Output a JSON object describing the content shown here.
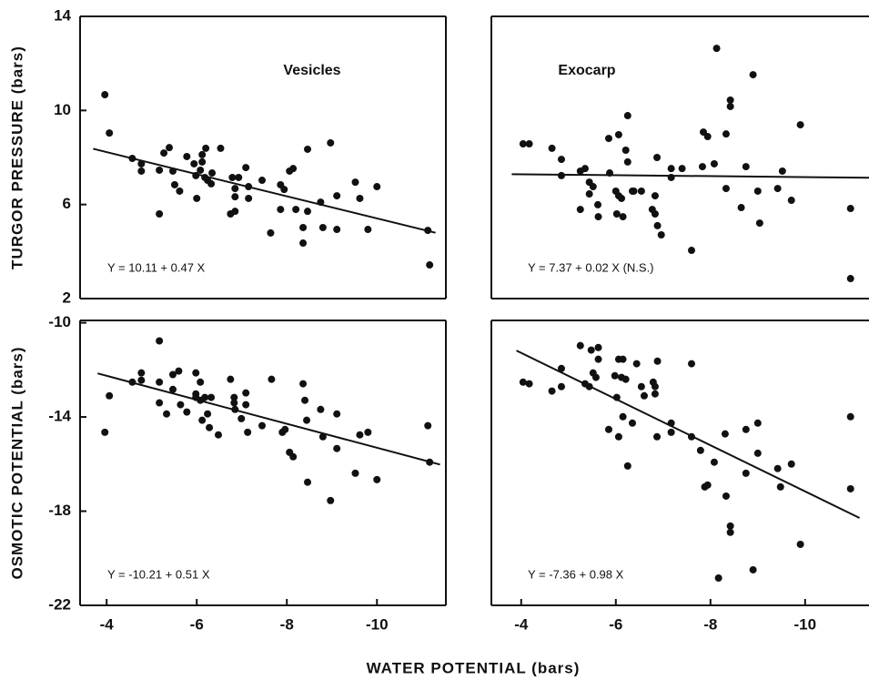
{
  "chart_data": [
    {
      "type": "scatter",
      "title": "Vesicles",
      "ylabel": "TURGOR PRESSURE (bars)",
      "annotation": "Y = 10.11 + 0.47 X",
      "xlim": [
        -3.41,
        -11.53
      ],
      "ylim": [
        2,
        14
      ],
      "yticks": [
        2,
        6,
        10,
        14
      ],
      "x": [
        -3.96,
        -4.06,
        -4.57,
        -4.77,
        -4.77,
        -5.17,
        -5.27,
        -5.39,
        -5.47,
        -5.51,
        -5.62,
        -5.78,
        -5.17,
        -5.94,
        -5.98,
        -6.0,
        -6.08,
        -6.12,
        -6.12,
        -6.18,
        -6.2,
        -6.24,
        -6.32,
        -6.34,
        -6.53,
        -6.79,
        -6.85,
        -6.85,
        -6.75,
        -6.85,
        -6.93,
        -7.09,
        -7.15,
        -7.15,
        -7.45,
        -7.64,
        -7.86,
        -7.94,
        -7.86,
        -8.06,
        -8.14,
        -8.2,
        -8.36,
        -8.36,
        -8.46,
        -8.46,
        -8.75,
        -8.8,
        -8.97,
        -9.11,
        -9.11,
        -9.52,
        -9.62,
        -9.8,
        -10.0,
        -11.13,
        -11.17
      ],
      "values": [
        10.67,
        9.04,
        7.96,
        7.73,
        7.42,
        7.46,
        8.19,
        8.42,
        7.42,
        6.84,
        6.57,
        8.04,
        5.6,
        7.73,
        7.23,
        6.26,
        7.46,
        8.12,
        7.81,
        7.15,
        8.39,
        7.03,
        6.88,
        7.34,
        8.39,
        7.15,
        6.68,
        6.33,
        5.6,
        5.71,
        7.15,
        7.57,
        6.26,
        6.76,
        7.03,
        4.79,
        6.84,
        6.64,
        5.79,
        7.42,
        7.53,
        5.79,
        5.02,
        4.36,
        8.35,
        5.71,
        6.1,
        5.02,
        8.62,
        6.37,
        4.94,
        6.95,
        6.26,
        4.94,
        6.76,
        4.9,
        3.43
      ],
      "fit": {
        "x": [
          -3.7,
          -11.3
        ],
        "values": [
          8.37,
          4.8
        ]
      },
      "color": "#111111"
    },
    {
      "type": "scatter",
      "title": "Exocarp",
      "annotation": "Y = 7.37 + 0.02 X  (N.S.)",
      "xlim": [
        -3.37,
        -11.35
      ],
      "ylim": [
        2,
        14
      ],
      "x": [
        -4.04,
        -4.17,
        -4.65,
        -4.85,
        -4.85,
        -5.25,
        -5.35,
        -5.25,
        -5.44,
        -5.44,
        -5.52,
        -5.62,
        -5.63,
        -5.85,
        -5.87,
        -6.06,
        -6.0,
        -6.06,
        -6.12,
        -6.02,
        -6.15,
        -6.21,
        -6.25,
        -6.25,
        -6.35,
        -6.38,
        -6.54,
        -6.77,
        -6.83,
        -6.83,
        -6.87,
        -6.88,
        -6.96,
        -7.17,
        -7.17,
        -7.4,
        -7.6,
        -7.83,
        -7.85,
        -7.94,
        -8.08,
        -8.13,
        -8.33,
        -8.33,
        -8.42,
        -8.42,
        -8.65,
        -8.75,
        -8.9,
        -9.0,
        -9.04,
        -9.42,
        -9.52,
        -9.71,
        -9.9,
        -10.96,
        -10.96
      ],
      "values": [
        8.58,
        8.58,
        8.39,
        7.92,
        7.23,
        7.42,
        7.53,
        5.79,
        6.95,
        6.45,
        6.76,
        5.99,
        5.48,
        8.81,
        7.34,
        8.97,
        6.57,
        6.37,
        6.26,
        5.6,
        5.48,
        8.31,
        9.78,
        7.81,
        6.57,
        6.57,
        6.57,
        5.79,
        6.37,
        5.6,
        8.0,
        5.1,
        4.71,
        7.53,
        7.15,
        7.53,
        4.05,
        7.61,
        9.08,
        8.89,
        7.73,
        12.64,
        6.68,
        9.0,
        10.44,
        10.17,
        5.87,
        7.61,
        11.52,
        6.57,
        5.21,
        6.68,
        7.42,
        6.18,
        9.39,
        5.83,
        2.85
      ],
      "fit": {
        "x": [
          -3.8,
          -11.35
        ],
        "values": [
          7.29,
          7.14
        ]
      },
      "color": "#111111"
    },
    {
      "type": "scatter",
      "ylabel": "OSMOTIC POTENTIAL (bars)",
      "xlabel": "WATER POTENTIAL (bars)",
      "annotation": "Y = -10.21 + 0.51 X",
      "xlim": [
        -3.41,
        -11.53
      ],
      "ylim": [
        -22,
        -9.9
      ],
      "xticks": [
        -4,
        -6,
        -8,
        -10
      ],
      "yticks": [
        -22,
        -18,
        -14,
        -10
      ],
      "x": [
        -3.96,
        -4.06,
        -4.57,
        -4.77,
        -4.77,
        -5.17,
        -5.17,
        -5.17,
        -5.33,
        -5.47,
        -5.47,
        -5.6,
        -5.64,
        -5.78,
        -5.98,
        -5.98,
        -5.98,
        -6.08,
        -6.08,
        -6.12,
        -6.18,
        -6.24,
        -6.28,
        -6.32,
        -6.48,
        -6.75,
        -6.83,
        -6.83,
        -6.85,
        -6.99,
        -7.09,
        -7.09,
        -7.13,
        -7.45,
        -7.66,
        -7.9,
        -7.96,
        -8.06,
        -8.14,
        -8.36,
        -8.4,
        -8.46,
        -8.44,
        -8.75,
        -8.8,
        -8.97,
        -9.11,
        -9.11,
        -9.52,
        -9.62,
        -9.8,
        -10.0,
        -11.13,
        -11.17
      ],
      "values": [
        -14.65,
        -13.1,
        -12.52,
        -12.44,
        -12.13,
        -12.52,
        -13.4,
        -10.77,
        -13.87,
        -12.2,
        -12.83,
        -12.05,
        -13.48,
        -13.79,
        -12.13,
        -13.02,
        -13.17,
        -12.52,
        -13.29,
        -14.14,
        -13.17,
        -13.87,
        -14.45,
        -13.17,
        -14.76,
        -12.4,
        -13.17,
        -13.4,
        -13.68,
        -14.07,
        -12.98,
        -13.48,
        -14.65,
        -14.37,
        -12.4,
        -14.65,
        -14.53,
        -15.5,
        -15.69,
        -12.59,
        -13.29,
        -16.77,
        -14.14,
        -13.68,
        -14.84,
        -17.55,
        -13.87,
        -15.34,
        -16.39,
        -14.76,
        -14.65,
        -16.66,
        -14.37,
        -15.92
      ],
      "fit": {
        "x": [
          -3.8,
          -11.4
        ],
        "values": [
          -12.15,
          -16.02
        ]
      },
      "color": "#111111"
    },
    {
      "type": "scatter",
      "annotation": "Y = -7.36 + 0.98 X",
      "xlim": [
        -3.37,
        -11.35
      ],
      "ylim": [
        -22,
        -9.9
      ],
      "xticks": [
        -4,
        -6,
        -8,
        -10
      ],
      "x": [
        -4.04,
        -4.17,
        -4.65,
        -4.85,
        -4.85,
        -5.25,
        -5.35,
        -5.44,
        -5.48,
        -5.52,
        -5.58,
        -5.63,
        -5.63,
        -5.85,
        -5.98,
        -6.02,
        -6.06,
        -6.06,
        -6.12,
        -6.15,
        -6.15,
        -6.21,
        -6.25,
        -6.35,
        -6.44,
        -6.54,
        -6.6,
        -6.79,
        -6.83,
        -6.83,
        -6.88,
        -6.87,
        -7.17,
        -7.17,
        -7.6,
        -7.6,
        -7.79,
        -7.88,
        -7.94,
        -8.08,
        -8.17,
        -8.31,
        -8.33,
        -8.42,
        -8.42,
        -8.75,
        -8.75,
        -8.9,
        -9.0,
        -9.0,
        -9.42,
        -9.48,
        -9.71,
        -9.9,
        -10.96,
        -10.96
      ],
      "values": [
        -12.52,
        -12.59,
        -12.9,
        -11.94,
        -12.71,
        -10.97,
        -12.59,
        -12.71,
        -11.16,
        -12.13,
        -12.32,
        -11.05,
        -11.55,
        -14.53,
        -12.25,
        -13.17,
        -11.55,
        -14.84,
        -12.32,
        -11.55,
        -13.99,
        -12.4,
        -16.08,
        -14.26,
        -11.74,
        -12.71,
        -13.1,
        -12.52,
        -12.71,
        -13.02,
        -11.63,
        -14.84,
        -14.26,
        -14.65,
        -11.74,
        -14.84,
        -15.42,
        -16.97,
        -16.89,
        -15.92,
        -20.84,
        -14.72,
        -17.36,
        -18.63,
        -18.9,
        -14.53,
        -16.39,
        -20.49,
        -14.26,
        -15.54,
        -16.19,
        -16.97,
        -16.0,
        -19.41,
        -13.99,
        -17.05
      ],
      "fit": {
        "x": [
          -3.9,
          -11.15
        ],
        "values": [
          -11.18,
          -18.29
        ]
      },
      "color": "#111111"
    }
  ]
}
